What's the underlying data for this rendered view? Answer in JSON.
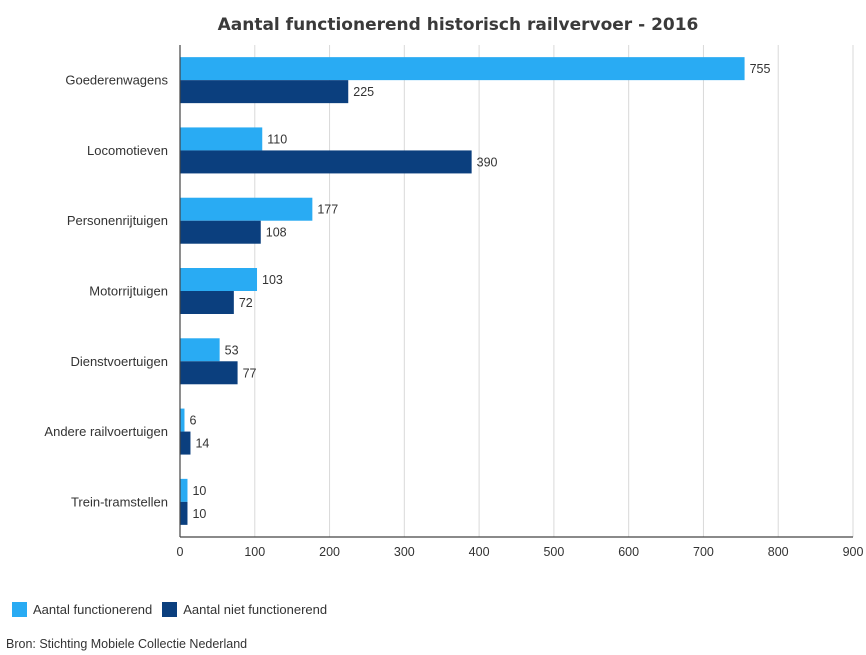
{
  "chart_data": {
    "type": "bar",
    "orientation": "horizontal",
    "title": "Aantal functionerend historisch railvervoer - 2016",
    "categories": [
      "Goederenwagens",
      "Locomotieven",
      "Personenrijtuigen",
      "Motorrijtuigen",
      "Dienstvoertuigen",
      "Andere railvoertuigen",
      "Trein-tramstellen"
    ],
    "series": [
      {
        "name": "Aantal functionerend",
        "color": "#29abf3",
        "values": [
          755,
          110,
          177,
          103,
          53,
          6,
          10
        ]
      },
      {
        "name": "Aantal niet functionerend",
        "color": "#0b3f7e",
        "values": [
          225,
          390,
          108,
          72,
          77,
          14,
          10
        ]
      }
    ],
    "xlim": [
      0,
      900
    ],
    "xticks": [
      0,
      100,
      200,
      300,
      400,
      500,
      600,
      700,
      800,
      900
    ],
    "grid": true,
    "legend": "bottom-left"
  },
  "source": "Bron: Stichting Mobiele Collectie Nederland"
}
